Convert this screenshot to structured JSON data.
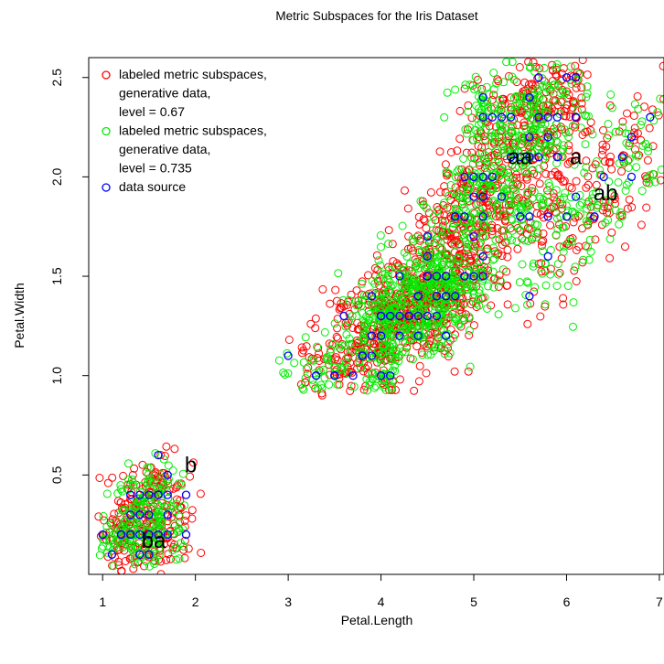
{
  "chart_data": {
    "type": "scatter",
    "title": "Metric Subspaces for the Iris Dataset",
    "xlabel": "Petal.Length",
    "ylabel": "Petal.Width",
    "xlim": [
      0.85,
      7.05
    ],
    "ylim": [
      0.0,
      2.6
    ],
    "x_ticks": [
      1,
      2,
      3,
      4,
      5,
      6,
      7
    ],
    "y_ticks": [
      0.5,
      1.0,
      1.5,
      2.0,
      2.5
    ],
    "x_tick_labels": [
      "1",
      "2",
      "3",
      "4",
      "5",
      "6",
      "7"
    ],
    "y_tick_labels": [
      "0.5",
      "1.0",
      "1.5",
      "2.0",
      "2.5"
    ],
    "grid": false,
    "legend": {
      "position": "top-left",
      "entries": [
        {
          "lines": [
            "labeled metric subspaces,",
            "generative data,",
            "level = 0.67"
          ],
          "color": "#ff0000"
        },
        {
          "lines": [
            "labeled metric subspaces,",
            "generative data,",
            "level = 0.735"
          ],
          "color": "#00ee00"
        },
        {
          "lines": [
            "data source"
          ],
          "color": "#0000ff"
        }
      ]
    },
    "annotations": [
      {
        "text": "b",
        "x": 1.95,
        "y": 0.55
      },
      {
        "text": "ba",
        "x": 1.55,
        "y": 0.17
      },
      {
        "text": "aa",
        "x": 5.5,
        "y": 2.1
      },
      {
        "text": "a",
        "x": 6.1,
        "y": 2.1
      },
      {
        "text": "ab",
        "x": 6.42,
        "y": 1.92
      }
    ],
    "series": [
      {
        "color": "#0000ff",
        "points": [
          [
            1.4,
            0.2
          ],
          [
            1.3,
            0.2
          ],
          [
            1.5,
            0.2
          ],
          [
            1.4,
            0.4
          ],
          [
            1.4,
            0.3
          ],
          [
            1.5,
            0.1
          ],
          [
            1.6,
            0.2
          ],
          [
            1.1,
            0.1
          ],
          [
            1.2,
            0.2
          ],
          [
            1.3,
            0.4
          ],
          [
            1.7,
            0.3
          ],
          [
            1.5,
            0.3
          ],
          [
            1.7,
            0.2
          ],
          [
            1.5,
            0.4
          ],
          [
            1.0,
            0.2
          ],
          [
            1.7,
            0.5
          ],
          [
            1.9,
            0.2
          ],
          [
            1.6,
            0.4
          ],
          [
            1.4,
            0.1
          ],
          [
            1.2,
            0.2
          ],
          [
            1.3,
            0.3
          ],
          [
            1.6,
            0.6
          ],
          [
            1.9,
            0.4
          ],
          [
            1.6,
            0.2
          ],
          [
            1.3,
            0.4
          ],
          [
            1.5,
            0.2
          ],
          [
            1.4,
            0.3
          ],
          [
            1.6,
            0.4
          ],
          [
            1.7,
            0.4
          ],
          [
            1.3,
            0.2
          ],
          [
            4.7,
            1.4
          ],
          [
            4.5,
            1.5
          ],
          [
            4.9,
            1.5
          ],
          [
            4.0,
            1.3
          ],
          [
            4.6,
            1.5
          ],
          [
            3.3,
            1.0
          ],
          [
            4.6,
            1.3
          ],
          [
            3.9,
            1.4
          ],
          [
            3.5,
            1.0
          ],
          [
            4.2,
            1.5
          ],
          [
            4.0,
            1.0
          ],
          [
            4.7,
            1.4
          ],
          [
            3.6,
            1.3
          ],
          [
            4.4,
            1.4
          ],
          [
            4.5,
            1.5
          ],
          [
            4.1,
            1.0
          ],
          [
            3.9,
            1.1
          ],
          [
            4.8,
            1.8
          ],
          [
            4.0,
            1.3
          ],
          [
            4.9,
            1.5
          ],
          [
            4.7,
            1.2
          ],
          [
            4.3,
            1.3
          ],
          [
            4.4,
            1.4
          ],
          [
            5.0,
            1.7
          ],
          [
            4.5,
            1.5
          ],
          [
            3.5,
            1.0
          ],
          [
            3.8,
            1.1
          ],
          [
            3.7,
            1.0
          ],
          [
            3.9,
            1.2
          ],
          [
            5.1,
            1.6
          ],
          [
            4.5,
            1.5
          ],
          [
            4.7,
            1.5
          ],
          [
            4.4,
            1.3
          ],
          [
            4.1,
            1.3
          ],
          [
            4.0,
            1.3
          ],
          [
            4.4,
            1.2
          ],
          [
            4.6,
            1.4
          ],
          [
            4.0,
            1.2
          ],
          [
            3.3,
            1.0
          ],
          [
            4.2,
            1.3
          ],
          [
            4.2,
            1.2
          ],
          [
            4.3,
            1.3
          ],
          [
            3.0,
            1.1
          ],
          [
            4.1,
            1.3
          ],
          [
            3.8,
            1.1
          ],
          [
            4.5,
            1.3
          ],
          [
            4.6,
            1.4
          ],
          [
            4.8,
            1.4
          ],
          [
            4.9,
            1.8
          ],
          [
            5.1,
            1.9
          ],
          [
            6.0,
            2.5
          ],
          [
            5.9,
            2.1
          ],
          [
            5.6,
            1.8
          ],
          [
            5.8,
            2.2
          ],
          [
            6.6,
            2.1
          ],
          [
            4.5,
            1.7
          ],
          [
            6.3,
            1.8
          ],
          [
            6.1,
            2.5
          ],
          [
            5.1,
            2.0
          ],
          [
            5.3,
            1.9
          ],
          [
            5.5,
            2.1
          ],
          [
            5.0,
            2.0
          ],
          [
            5.1,
            2.4
          ],
          [
            5.3,
            2.3
          ],
          [
            5.5,
            1.8
          ],
          [
            6.7,
            2.2
          ],
          [
            6.9,
            2.3
          ],
          [
            5.0,
            1.5
          ],
          [
            5.7,
            2.3
          ],
          [
            4.9,
            2.0
          ],
          [
            6.7,
            2.0
          ],
          [
            4.9,
            1.8
          ],
          [
            5.7,
            2.1
          ],
          [
            6.0,
            1.8
          ],
          [
            4.8,
            1.8
          ],
          [
            5.8,
            1.6
          ],
          [
            6.1,
            1.9
          ],
          [
            6.4,
            2.0
          ],
          [
            5.6,
            2.2
          ],
          [
            5.1,
            1.5
          ],
          [
            5.6,
            1.4
          ],
          [
            6.1,
            2.3
          ],
          [
            5.6,
            2.4
          ],
          [
            5.5,
            1.8
          ],
          [
            5.4,
            2.1
          ],
          [
            5.6,
            2.4
          ],
          [
            5.1,
            2.3
          ],
          [
            5.9,
            2.3
          ],
          [
            5.7,
            2.5
          ],
          [
            5.2,
            2.3
          ],
          [
            5.2,
            2.0
          ],
          [
            5.4,
            2.3
          ],
          [
            5.1,
            1.8
          ],
          [
            6.3,
            1.8
          ],
          [
            5.8,
            1.8
          ],
          [
            5.0,
            1.9
          ],
          [
            5.8,
            2.3
          ],
          [
            4.4,
            1.4
          ],
          [
            4.5,
            1.6
          ],
          [
            5.6,
            2.1
          ]
        ]
      }
    ],
    "generated_clouds": [
      {
        "color": "#ff0000",
        "x_range": [
          0.95,
          2.1
        ],
        "y_range": [
          0.0,
          0.67
        ],
        "density": "high"
      },
      {
        "color": "#00ee00",
        "x_range": [
          0.95,
          1.9
        ],
        "y_range": [
          0.03,
          0.65
        ],
        "density": "high"
      },
      {
        "color": "#ff0000",
        "x_range": [
          3.0,
          7.05
        ],
        "y_range": [
          0.9,
          2.6
        ],
        "density": "high"
      },
      {
        "color": "#00ee00",
        "x_range": [
          2.9,
          7.05
        ],
        "y_range": [
          0.92,
          2.6
        ],
        "density": "high"
      }
    ]
  }
}
